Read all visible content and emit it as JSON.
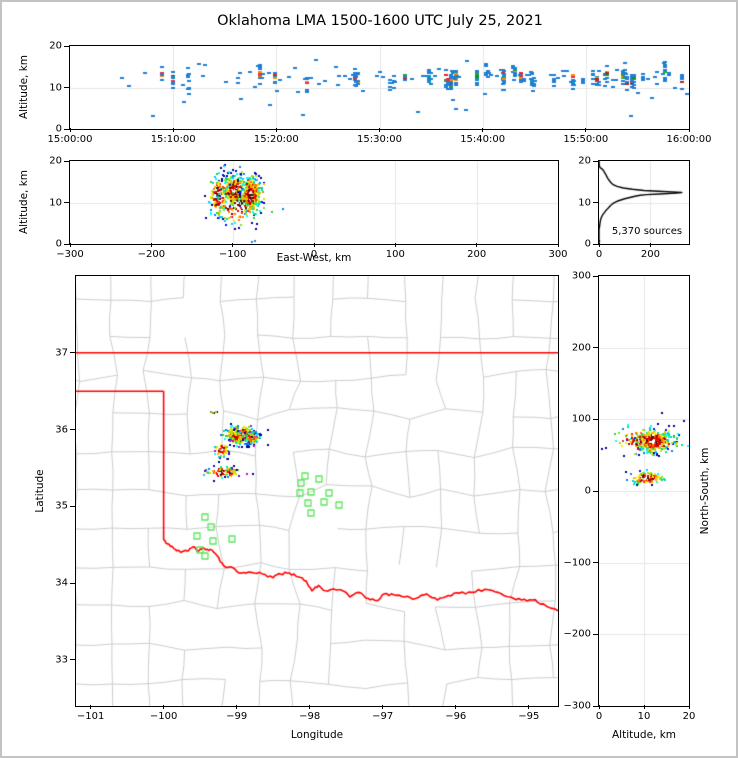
{
  "chart_data": {
    "type": "scatter",
    "title": "Oklahoma LMA 1500-1600 UTC July 25, 2021",
    "description": "Lightning Mapping Array source plot: time-height panel, east-west height panel, altitude histogram, plan-view map of Oklahoma with county and state borders, and north-south height panel.",
    "density_palette_low_to_high": [
      "#000096",
      "#0010ff",
      "#0080ff",
      "#00c8ff",
      "#00ffff",
      "#00e68c",
      "#32cd32",
      "#80e612",
      "#c8e600",
      "#ffe600",
      "#ffb400",
      "#ff7800",
      "#ff3200",
      "#e60000",
      "#b40000",
      "#780000",
      "#1e1e1e",
      "#d2d2d2",
      "#ffffff"
    ],
    "accent_colors": {
      "point_blue": "#1f7fd4",
      "hot_mix": [
        "#d62728",
        "#1a8c1a",
        "#ff8c00",
        "#2ca02c",
        "#e62e4d",
        "#b22222",
        "#00a0b4"
      ],
      "purple_mix": [
        "#8a2be2",
        "#cc00cc",
        "#6a0dad"
      ],
      "state_border": "#ff0000",
      "county_line": "#cccccc",
      "grid_line": "#e6e6e6",
      "station_green": "#5ce65c",
      "histogram_line": "#000000"
    },
    "panels": {
      "time_height": {
        "kind": "time-height-scatter",
        "ylabel": "Altitude, km",
        "xlim": [
          0,
          3600
        ],
        "ylim": [
          0,
          20
        ],
        "grid": true,
        "xticks": [
          {
            "v": 0,
            "label": "15:00:00"
          },
          {
            "v": 600,
            "label": "15:10:00"
          },
          {
            "v": 1200,
            "label": "15:20:00"
          },
          {
            "v": 1800,
            "label": "15:30:00"
          },
          {
            "v": 2400,
            "label": "15:40:00"
          },
          {
            "v": 3000,
            "label": "15:50:00"
          },
          {
            "v": 3600,
            "label": "16:00:00"
          }
        ],
        "yticks": [
          {
            "v": 0,
            "label": "0"
          },
          {
            "v": 10,
            "label": "10"
          },
          {
            "v": 20,
            "label": "20"
          }
        ],
        "scatter_spec": {
          "seed": 42,
          "n_events": 72,
          "n_singles": 65,
          "n_outliers": 13,
          "alt_mean": 12.3,
          "alt_sd": 1.1,
          "time_bias_pow": 0.7
        }
      },
      "ew_alt": {
        "kind": "density-scatter",
        "xlabel": "East-West, km",
        "ylabel": "Altitude, km",
        "xlim": [
          -300,
          300
        ],
        "ylim": [
          0,
          20
        ],
        "grid": true,
        "xticks": [
          {
            "v": -300,
            "label": "−300"
          },
          {
            "v": -200,
            "label": "−200"
          },
          {
            "v": -100,
            "label": "−100"
          },
          {
            "v": 0,
            "label": "0"
          },
          {
            "v": 100,
            "label": "100"
          },
          {
            "v": 200,
            "label": "200"
          },
          {
            "v": 300,
            "label": "300"
          }
        ],
        "yticks": [
          {
            "v": 0,
            "label": "0"
          },
          {
            "v": 10,
            "label": "10"
          },
          {
            "v": 20,
            "label": "20"
          }
        ],
        "seed": 7,
        "blobs": [
          {
            "cx": -98,
            "cy": 13,
            "sx": 7,
            "sy": 1.7,
            "n": 380
          },
          {
            "cx": -77,
            "cy": 12,
            "sx": 6,
            "sy": 2.1,
            "n": 330
          },
          {
            "cx": -118,
            "cy": 11.5,
            "sx": 5,
            "sy": 2.6,
            "n": 110
          },
          {
            "cx": -95,
            "cy": 9,
            "sx": 14,
            "sy": 2.2,
            "n": 90
          },
          {
            "cx": -90,
            "cy": 12.5,
            "sx": 22,
            "sy": 3.2,
            "n": 60
          }
        ],
        "extra_blue_points": [
          [
            -76,
            0.5
          ],
          [
            -73,
            0.7
          ]
        ]
      },
      "histogram": {
        "kind": "line",
        "annotation": "5,370 sources",
        "xlim": [
          0,
          350
        ],
        "ylim": [
          0,
          20
        ],
        "grid": true,
        "xticks": [
          {
            "v": 0,
            "label": "0"
          },
          {
            "v": 200,
            "label": "200"
          }
        ],
        "yticks": [
          {
            "v": 0,
            "label": "0"
          },
          {
            "v": 10,
            "label": "10"
          },
          {
            "v": 20,
            "label": "20"
          }
        ],
        "curve_count_alt": [
          [
            0,
            20
          ],
          [
            1,
            19
          ],
          [
            4,
            18.4
          ],
          [
            14,
            18
          ],
          [
            18,
            17.6
          ],
          [
            22,
            17.2
          ],
          [
            26,
            16.8
          ],
          [
            30,
            16.3
          ],
          [
            34,
            15.8
          ],
          [
            40,
            15.3
          ],
          [
            46,
            14.8
          ],
          [
            55,
            14.3
          ],
          [
            70,
            13.9
          ],
          [
            95,
            13.5
          ],
          [
            130,
            13.2
          ],
          [
            175,
            12.9
          ],
          [
            230,
            12.7
          ],
          [
            285,
            12.55
          ],
          [
            322,
            12.4
          ],
          [
            300,
            12.25
          ],
          [
            235,
            12.05
          ],
          [
            185,
            11.9
          ],
          [
            160,
            11.75
          ],
          [
            140,
            11.5
          ],
          [
            120,
            11.2
          ],
          [
            100,
            10.9
          ],
          [
            85,
            10.6
          ],
          [
            70,
            10.3
          ],
          [
            62,
            10.05
          ],
          [
            55,
            9.8
          ],
          [
            50,
            9.5
          ],
          [
            44,
            9.2
          ],
          [
            38,
            8.8
          ],
          [
            32,
            8.4
          ],
          [
            26,
            8.0
          ],
          [
            20,
            7.5
          ],
          [
            14,
            7.0
          ],
          [
            10,
            6.5
          ],
          [
            7,
            6.0
          ],
          [
            5,
            5.5
          ],
          [
            4,
            5.0
          ],
          [
            3,
            4.6
          ],
          [
            2,
            4.2
          ],
          [
            1,
            3.8
          ],
          [
            0,
            3.4
          ],
          [
            0,
            1.0
          ],
          [
            2,
            0.7
          ],
          [
            0,
            0.4
          ],
          [
            0,
            0
          ]
        ]
      },
      "map": {
        "kind": "map",
        "xlabel": "Longitude",
        "ylabel": "Latitude",
        "xlim": [
          -101.2,
          -94.6
        ],
        "ylim": [
          32.4,
          38.0
        ],
        "grid": false,
        "xticks": [
          {
            "v": -101,
            "label": "−101"
          },
          {
            "v": -100,
            "label": "−100"
          },
          {
            "v": -99,
            "label": "−99"
          },
          {
            "v": -98,
            "label": "−98"
          },
          {
            "v": -97,
            "label": "−97"
          },
          {
            "v": -96,
            "label": "−96"
          },
          {
            "v": -95,
            "label": "−95"
          }
        ],
        "yticks": [
          {
            "v": 33,
            "label": "33"
          },
          {
            "v": 34,
            "label": "34"
          },
          {
            "v": 35,
            "label": "35"
          },
          {
            "v": 36,
            "label": "36"
          },
          {
            "v": 37,
            "label": "37"
          }
        ],
        "counties_spec": {
          "seed": 1234,
          "origin_lon": -101.7,
          "origin_lat": 32.2,
          "cell_deg": 0.5,
          "nx": 16,
          "ny": 13,
          "edge_keep_prob": 0.82
        },
        "state_border": {
          "north_line": [
            [
              -101.2,
              37
            ],
            [
              -94.6,
              37
            ]
          ],
          "panhandle_south_line": [
            [
              -101.2,
              36.5
            ],
            [
              -100.0,
              36.5
            ]
          ],
          "west_line": [
            [
              -100.0,
              36.5
            ],
            [
              -100.0,
              34.56
            ]
          ],
          "red_river": [
            [
              -100.0,
              34.56
            ],
            [
              -99.93,
              34.51
            ],
            [
              -99.84,
              34.44
            ],
            [
              -99.76,
              34.4
            ],
            [
              -99.68,
              34.42
            ],
            [
              -99.6,
              34.47
            ],
            [
              -99.52,
              34.42
            ],
            [
              -99.44,
              34.45
            ],
            [
              -99.36,
              34.44
            ],
            [
              -99.27,
              34.36
            ],
            [
              -99.18,
              34.23
            ],
            [
              -99.05,
              34.2
            ],
            [
              -98.94,
              34.13
            ],
            [
              -98.8,
              34.14
            ],
            [
              -98.65,
              34.12
            ],
            [
              -98.5,
              34.07
            ],
            [
              -98.4,
              34.12
            ],
            [
              -98.28,
              34.13
            ],
            [
              -98.15,
              34.08
            ],
            [
              -98.05,
              34.03
            ],
            [
              -97.97,
              33.9
            ],
            [
              -97.88,
              33.97
            ],
            [
              -97.78,
              33.9
            ],
            [
              -97.66,
              33.92
            ],
            [
              -97.55,
              33.9
            ],
            [
              -97.45,
              33.82
            ],
            [
              -97.33,
              33.88
            ],
            [
              -97.2,
              33.8
            ],
            [
              -97.08,
              33.77
            ],
            [
              -96.98,
              33.86
            ],
            [
              -96.85,
              33.85
            ],
            [
              -96.7,
              33.82
            ],
            [
              -96.55,
              33.8
            ],
            [
              -96.4,
              33.86
            ],
            [
              -96.25,
              33.78
            ],
            [
              -96.1,
              33.84
            ],
            [
              -95.95,
              33.87
            ],
            [
              -95.78,
              33.88
            ],
            [
              -95.6,
              33.92
            ],
            [
              -95.42,
              33.88
            ],
            [
              -95.25,
              33.82
            ],
            [
              -95.1,
              33.78
            ],
            [
              -94.95,
              33.78
            ],
            [
              -94.8,
              33.73
            ],
            [
              -94.6,
              33.64
            ]
          ],
          "river_wiggle_seed": 777
        },
        "stations_lon_lat": [
          [
            -98.07,
            35.39
          ],
          [
            -97.87,
            35.35
          ],
          [
            -98.12,
            35.3
          ],
          [
            -98.13,
            35.18
          ],
          [
            -97.98,
            35.19
          ],
          [
            -97.74,
            35.18
          ],
          [
            -98.03,
            35.05
          ],
          [
            -97.8,
            35.06
          ],
          [
            -97.6,
            35.02
          ],
          [
            -97.98,
            34.91
          ],
          [
            -99.44,
            34.86
          ],
          [
            -99.35,
            34.73
          ],
          [
            -99.54,
            34.62
          ],
          [
            -99.32,
            34.55
          ],
          [
            -99.06,
            34.57
          ],
          [
            -99.5,
            34.43
          ],
          [
            -99.43,
            34.35
          ]
        ],
        "seed": 99,
        "clusters": [
          {
            "cx": -98.94,
            "cy": 35.93,
            "sx": 0.11,
            "sy": 0.06,
            "n": 240
          },
          {
            "cx": -98.79,
            "cy": 35.89,
            "sx": 0.045,
            "sy": 0.035,
            "n": 120
          },
          {
            "cx": -99.0,
            "cy": 35.9,
            "sx": 0.04,
            "sy": 0.035,
            "n": 120
          },
          {
            "cx": -99.21,
            "cy": 35.73,
            "sx": 0.05,
            "sy": 0.05,
            "n": 55
          },
          {
            "cx": -99.2,
            "cy": 35.44,
            "sx": 0.13,
            "sy": 0.035,
            "n": 75
          },
          {
            "cx": -99.08,
            "cy": 35.45,
            "sx": 0.04,
            "sy": 0.03,
            "n": 45
          },
          {
            "cx": -99.32,
            "cy": 36.22,
            "sx": 0.025,
            "sy": 0.012,
            "n": 7
          }
        ]
      },
      "ns_alt": {
        "kind": "density-scatter",
        "xlabel": "Altitude, km",
        "ylabel": "North-South, km",
        "xlim": [
          0,
          20
        ],
        "ylim": [
          -300,
          300
        ],
        "grid": true,
        "xticks": [
          {
            "v": 0,
            "label": "0"
          },
          {
            "v": 10,
            "label": "10"
          },
          {
            "v": 20,
            "label": "20"
          }
        ],
        "yticks": [
          {
            "v": 300,
            "label": "300"
          },
          {
            "v": 200,
            "label": "200"
          },
          {
            "v": 100,
            "label": "100"
          },
          {
            "v": 0,
            "label": "0"
          },
          {
            "v": -100,
            "label": "−100"
          },
          {
            "v": -200,
            "label": "−200"
          },
          {
            "v": -300,
            "label": "−300"
          }
        ],
        "seed": 5,
        "blobs": [
          {
            "cx": 12,
            "cy": 70,
            "sx": 2.0,
            "sy": 7.5,
            "n": 360
          },
          {
            "cx": 11,
            "cy": 70,
            "sx": 4.2,
            "sy": 10,
            "n": 130
          },
          {
            "cx": 10.5,
            "cy": 18,
            "sx": 1.8,
            "sy": 4.5,
            "n": 95
          }
        ],
        "extra_blue_points": []
      }
    }
  }
}
